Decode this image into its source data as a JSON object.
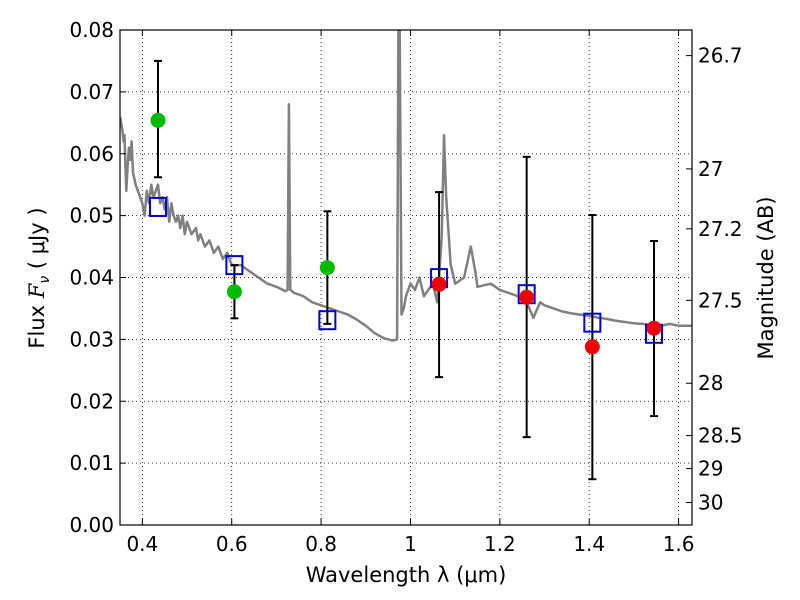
{
  "chart_data": {
    "type": "scatter",
    "xlabel": "Wavelength  λ (μm)",
    "ylabel": "Flux  F_ν  ( μJy )",
    "ylabel_parts": {
      "pre": "Flux  ",
      "var": "F",
      "sub": "ν",
      "post": "  ( μJy )"
    },
    "y2label": "Magnitude (AB)",
    "xlim": [
      0.35,
      1.63
    ],
    "ylim": [
      0.0,
      0.08
    ],
    "grid": true,
    "x_ticks": [
      {
        "value": 0.4,
        "label": "0.4"
      },
      {
        "value": 0.6,
        "label": "0.6"
      },
      {
        "value": 0.8,
        "label": "0.8"
      },
      {
        "value": 1.0,
        "label": "1"
      },
      {
        "value": 1.2,
        "label": "1.2"
      },
      {
        "value": 1.4,
        "label": "1.4"
      },
      {
        "value": 1.6,
        "label": "1.6"
      }
    ],
    "y_ticks": [
      {
        "value": 0.0,
        "label": "0.00"
      },
      {
        "value": 0.01,
        "label": "0.01"
      },
      {
        "value": 0.02,
        "label": "0.02"
      },
      {
        "value": 0.03,
        "label": "0.03"
      },
      {
        "value": 0.04,
        "label": "0.04"
      },
      {
        "value": 0.05,
        "label": "0.05"
      },
      {
        "value": 0.06,
        "label": "0.06"
      },
      {
        "value": 0.07,
        "label": "0.07"
      },
      {
        "value": 0.08,
        "label": "0.08"
      }
    ],
    "y2_ticks": [
      {
        "value": 26.7,
        "label": "26.7"
      },
      {
        "value": 27.0,
        "label": "27"
      },
      {
        "value": 27.2,
        "label": "27.2"
      },
      {
        "value": 27.5,
        "label": "27.5"
      },
      {
        "value": 28.0,
        "label": "28"
      },
      {
        "value": 28.5,
        "label": "28.5"
      },
      {
        "value": 29.0,
        "label": "29"
      },
      {
        "value": 30.0,
        "label": "30"
      }
    ],
    "model_spectrum": {
      "color": "#808080",
      "points": [
        [
          0.35,
          0.066
        ],
        [
          0.355,
          0.064
        ],
        [
          0.358,
          0.062
        ],
        [
          0.36,
          0.063
        ],
        [
          0.362,
          0.058
        ],
        [
          0.364,
          0.054
        ],
        [
          0.367,
          0.058
        ],
        [
          0.37,
          0.061
        ],
        [
          0.373,
          0.059
        ],
        [
          0.376,
          0.062
        ],
        [
          0.379,
          0.057
        ],
        [
          0.382,
          0.056
        ],
        [
          0.385,
          0.055
        ],
        [
          0.39,
          0.054
        ],
        [
          0.395,
          0.053
        ],
        [
          0.4,
          0.052
        ],
        [
          0.405,
          0.05
        ],
        [
          0.41,
          0.054
        ],
        [
          0.415,
          0.052
        ],
        [
          0.42,
          0.055
        ],
        [
          0.425,
          0.053
        ],
        [
          0.43,
          0.054
        ],
        [
          0.435,
          0.055
        ],
        [
          0.44,
          0.052
        ],
        [
          0.445,
          0.053
        ],
        [
          0.45,
          0.051
        ],
        [
          0.455,
          0.053
        ],
        [
          0.46,
          0.049
        ],
        [
          0.465,
          0.052
        ],
        [
          0.47,
          0.05
        ],
        [
          0.475,
          0.049
        ],
        [
          0.48,
          0.05
        ],
        [
          0.485,
          0.048
        ],
        [
          0.49,
          0.05
        ],
        [
          0.495,
          0.047
        ],
        [
          0.5,
          0.049
        ],
        [
          0.505,
          0.048
        ],
        [
          0.51,
          0.047
        ],
        [
          0.52,
          0.048
        ],
        [
          0.525,
          0.046
        ],
        [
          0.53,
          0.047
        ],
        [
          0.54,
          0.045
        ],
        [
          0.55,
          0.046
        ],
        [
          0.56,
          0.044
        ],
        [
          0.57,
          0.045
        ],
        [
          0.58,
          0.043
        ],
        [
          0.59,
          0.044
        ],
        [
          0.6,
          0.042
        ],
        [
          0.62,
          0.042
        ],
        [
          0.64,
          0.041
        ],
        [
          0.66,
          0.04
        ],
        [
          0.68,
          0.039
        ],
        [
          0.7,
          0.0385
        ],
        [
          0.72,
          0.0378
        ],
        [
          0.725,
          0.038
        ],
        [
          0.728,
          0.068
        ],
        [
          0.731,
          0.038
        ],
        [
          0.74,
          0.0375
        ],
        [
          0.76,
          0.037
        ],
        [
          0.78,
          0.036
        ],
        [
          0.8,
          0.0355
        ],
        [
          0.82,
          0.035
        ],
        [
          0.84,
          0.0345
        ],
        [
          0.86,
          0.034
        ],
        [
          0.88,
          0.0332
        ],
        [
          0.9,
          0.0322
        ],
        [
          0.92,
          0.031
        ],
        [
          0.94,
          0.0302
        ],
        [
          0.96,
          0.0298
        ],
        [
          0.97,
          0.03
        ],
        [
          0.973,
          0.08
        ],
        [
          0.976,
          0.08
        ],
        [
          0.98,
          0.034
        ],
        [
          0.985,
          0.035
        ],
        [
          0.99,
          0.037
        ],
        [
          1.0,
          0.039
        ],
        [
          1.01,
          0.038
        ],
        [
          1.02,
          0.04
        ],
        [
          1.03,
          0.037
        ],
        [
          1.04,
          0.038
        ],
        [
          1.05,
          0.039
        ],
        [
          1.06,
          0.036
        ],
        [
          1.065,
          0.041
        ],
        [
          1.07,
          0.047
        ],
        [
          1.075,
          0.063
        ],
        [
          1.08,
          0.053
        ],
        [
          1.09,
          0.042
        ],
        [
          1.1,
          0.039
        ],
        [
          1.12,
          0.04
        ],
        [
          1.135,
          0.045
        ],
        [
          1.145,
          0.041
        ],
        [
          1.15,
          0.0385
        ],
        [
          1.18,
          0.039
        ],
        [
          1.2,
          0.038
        ],
        [
          1.22,
          0.0375
        ],
        [
          1.24,
          0.037
        ],
        [
          1.26,
          0.036
        ],
        [
          1.275,
          0.0335
        ],
        [
          1.29,
          0.036
        ],
        [
          1.3,
          0.0355
        ],
        [
          1.32,
          0.035
        ],
        [
          1.34,
          0.0345
        ],
        [
          1.36,
          0.0342
        ],
        [
          1.38,
          0.034
        ],
        [
          1.4,
          0.0338
        ],
        [
          1.42,
          0.0335
        ],
        [
          1.44,
          0.0333
        ],
        [
          1.46,
          0.033
        ],
        [
          1.48,
          0.0328
        ],
        [
          1.5,
          0.0326
        ],
        [
          1.52,
          0.0325
        ],
        [
          1.54,
          0.0323
        ],
        [
          1.56,
          0.0322
        ],
        [
          1.58,
          0.0325
        ],
        [
          1.6,
          0.0322
        ],
        [
          1.63,
          0.0322
        ]
      ]
    },
    "model_photometry": {
      "marker": "open-square",
      "color": "#0000cc",
      "points": [
        {
          "x": 0.435,
          "y": 0.0514
        },
        {
          "x": 0.606,
          "y": 0.042
        },
        {
          "x": 0.814,
          "y": 0.0331
        },
        {
          "x": 1.064,
          "y": 0.0399
        },
        {
          "x": 1.26,
          "y": 0.0373
        },
        {
          "x": 1.407,
          "y": 0.0327
        },
        {
          "x": 1.545,
          "y": 0.0309
        }
      ]
    },
    "observed_optical": {
      "marker": "filled-circle",
      "color": "#00bb00",
      "points": [
        {
          "x": 0.435,
          "y": 0.0654,
          "err_low": 0.0562,
          "err_high": 0.075
        },
        {
          "x": 0.606,
          "y": 0.0377,
          "err_low": 0.0334,
          "err_high": 0.042
        },
        {
          "x": 0.814,
          "y": 0.0416,
          "err_low": 0.0325,
          "err_high": 0.0507
        }
      ]
    },
    "observed_nir": {
      "marker": "filled-circle",
      "color": "#ee0000",
      "points": [
        {
          "x": 1.064,
          "y": 0.0389,
          "err_low": 0.0239,
          "err_high": 0.0538
        },
        {
          "x": 1.26,
          "y": 0.0368,
          "err_low": 0.0142,
          "err_high": 0.0595
        },
        {
          "x": 1.407,
          "y": 0.0288,
          "err_low": 0.0074,
          "err_high": 0.0501
        },
        {
          "x": 1.545,
          "y": 0.0318,
          "err_low": 0.0176,
          "err_high": 0.0459
        }
      ]
    }
  }
}
